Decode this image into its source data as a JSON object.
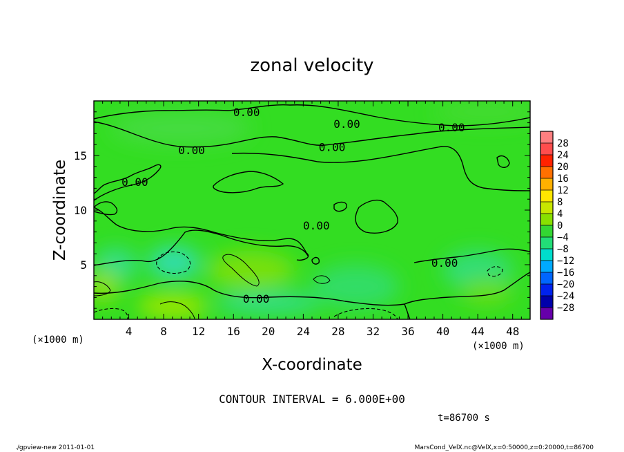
{
  "chart_data": {
    "type": "heatmap",
    "title": "zonal velocity",
    "xlabel": "X-coordinate",
    "ylabel": "Z-coordinate",
    "x_unit": "(×1000 m)",
    "y_unit": "(×1000 m)",
    "xlim": [
      0,
      50
    ],
    "ylim": [
      0,
      20
    ],
    "x_ticks": [
      4,
      8,
      12,
      16,
      20,
      24,
      28,
      32,
      36,
      40,
      44,
      48
    ],
    "y_ticks": [
      5,
      10,
      15
    ],
    "contour_interval_label": "CONTOUR INTERVAL = 6.000E+00",
    "time_label": "t=86700 s",
    "contour_labels": [
      {
        "text": "0.00",
        "x": 17.5,
        "z": 19.0
      },
      {
        "text": "0.00",
        "x": 29.0,
        "z": 17.9
      },
      {
        "text": "0.00",
        "x": 41.0,
        "z": 17.6
      },
      {
        "text": "0.00",
        "x": 11.2,
        "z": 15.5
      },
      {
        "text": "0.00",
        "x": 27.3,
        "z": 15.8
      },
      {
        "text": "0.00",
        "x": 4.7,
        "z": 12.6
      },
      {
        "text": "0.00",
        "x": 25.5,
        "z": 8.6
      },
      {
        "text": "0.00",
        "x": 40.2,
        "z": 5.2
      },
      {
        "text": "0.00",
        "x": 18.6,
        "z": 1.9
      }
    ],
    "colorbar": {
      "levels": [
        28,
        24,
        20,
        16,
        12,
        8,
        4,
        0,
        -4,
        -8,
        -12,
        -16,
        -20,
        -24,
        -28
      ],
      "colors": [
        "#ff7f80",
        "#ff4d4d",
        "#ff2200",
        "#ff7000",
        "#ffb000",
        "#ffe600",
        "#c8e600",
        "#88e000",
        "#33d633",
        "#22dd77",
        "#00ddcc",
        "#00aaff",
        "#0066ff",
        "#0022ee",
        "#0000aa",
        "#6600aa"
      ]
    },
    "field": {
      "base_color": "#33dd22",
      "regions": [
        {
          "x": 9.2,
          "z": 5.2,
          "rx": 3.0,
          "ry": 1.5,
          "color": "#33ddaa"
        },
        {
          "x": 2.5,
          "z": 5.0,
          "rx": 2.5,
          "ry": 1.5,
          "color": "#33dd88"
        },
        {
          "x": 30.0,
          "z": 3.0,
          "rx": 5.0,
          "ry": 2.0,
          "color": "#33dd66"
        },
        {
          "x": 44.0,
          "z": 4.5,
          "rx": 4.0,
          "ry": 1.8,
          "color": "#33dd77"
        },
        {
          "x": 20.0,
          "z": 1.5,
          "rx": 6.0,
          "ry": 1.0,
          "color": "#33dd88"
        },
        {
          "x": 9.0,
          "z": 1.2,
          "rx": 4.0,
          "ry": 1.2,
          "color": "#99e600"
        },
        {
          "x": 18.0,
          "z": 4.5,
          "rx": 5.0,
          "ry": 1.8,
          "color": "#77e010"
        },
        {
          "x": 1.0,
          "z": 3.0,
          "rx": 2.0,
          "ry": 1.5,
          "color": "#88e010"
        },
        {
          "x": 45.0,
          "z": 2.5,
          "rx": 3.0,
          "ry": 1.2,
          "color": "#66de18"
        },
        {
          "x": 10.0,
          "z": 17.5,
          "rx": 8.0,
          "ry": 1.5,
          "color": "#44dc40"
        },
        {
          "x": 45.0,
          "z": 19.0,
          "rx": 6.0,
          "ry": 1.0,
          "color": "#44dc30"
        }
      ]
    }
  },
  "footer": {
    "left": "./gpview-new  2011-01-01",
    "right": "MarsCond_VelX.nc@VelX,x=0:50000,z=0:20000,t=86700"
  }
}
